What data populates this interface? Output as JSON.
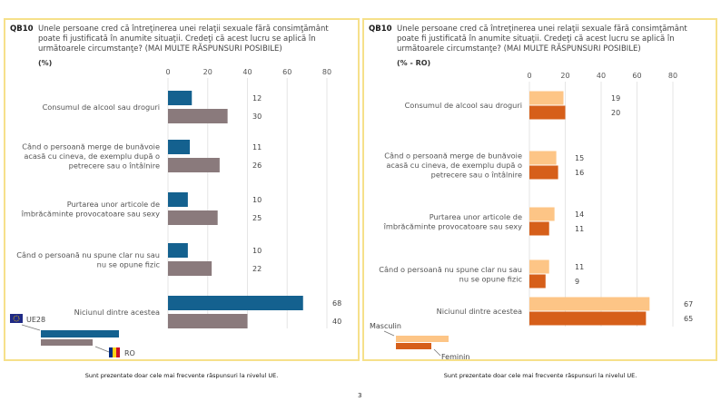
{
  "chart_data": [
    {
      "type": "bar",
      "orientation": "horizontal",
      "question_code": "QB10",
      "title": "Unele persoane cred că întreţinerea unei relaţii sexuale fără consimţământ poate fi justificată în anumite situaţii. Credeţi că acest lucru se aplică în următoarele circumstanţe? (MAI MULTE RĂSPUNSURI POSIBILE)",
      "unit": "(%)",
      "categories": [
        [
          "Consumul de alcool sau droguri"
        ],
        [
          "Când o persoană merge de bunăvoie",
          "acasă cu cineva, de exemplu după o",
          "petrecere sau o întâlnire"
        ],
        [
          "Purtarea unor articole de",
          "îmbrăcăminte provocatoare sau sexy"
        ],
        [
          "Când o persoană nu spune clar nu sau",
          "nu se opune fizic"
        ],
        [
          "Niciunul dintre acestea"
        ]
      ],
      "xlim": [
        0,
        80
      ],
      "xticks": [
        0,
        20,
        40,
        60,
        80
      ],
      "grid": true,
      "legend_position": "bottom-left",
      "series": [
        {
          "name": "UE28",
          "color": "#14618f",
          "values": [
            12,
            11,
            10,
            10,
            68
          ]
        },
        {
          "name": "RO",
          "color": "#8a7a7c",
          "values": [
            30,
            26,
            25,
            22,
            40
          ]
        }
      ],
      "footnote": "Sunt prezentate doar cele mai frecvente răspunsuri la nivelul UE."
    },
    {
      "type": "bar",
      "orientation": "horizontal",
      "question_code": "QB10",
      "title": "Unele persoane cred că întreţinerea unei relaţii sexuale fără consimţământ poate fi justificată în anumite situaţii. Credeţi că acest lucru se aplică în următoarele circumstanţe? (MAI MULTE RĂSPUNSURI POSIBILE)",
      "unit": "(% - RO)",
      "categories": [
        [
          "Consumul de alcool sau droguri"
        ],
        [
          "Când o persoană merge de bunăvoie",
          "acasă cu cineva, de exemplu după o",
          "petrecere sau o întâlnire"
        ],
        [
          "Purtarea unor articole de",
          "îmbrăcăminte provocatoare sau sexy"
        ],
        [
          "Când o persoană nu spune clar nu sau",
          "nu se opune fizic"
        ],
        [
          "Niciunul dintre acestea"
        ]
      ],
      "xlim": [
        0,
        80
      ],
      "xticks": [
        0,
        20,
        40,
        60,
        80
      ],
      "grid": true,
      "legend_position": "bottom-left",
      "series": [
        {
          "name": "Masculin",
          "color": "#fdc586",
          "values": [
            19,
            15,
            14,
            11,
            67
          ]
        },
        {
          "name": "Feminin",
          "color": "#d65f1a",
          "values": [
            20,
            16,
            11,
            9,
            65
          ]
        }
      ],
      "footnote": "Sunt prezentate doar cele mai frecvente răspunsuri la nivelul UE."
    }
  ],
  "page_number": "3"
}
